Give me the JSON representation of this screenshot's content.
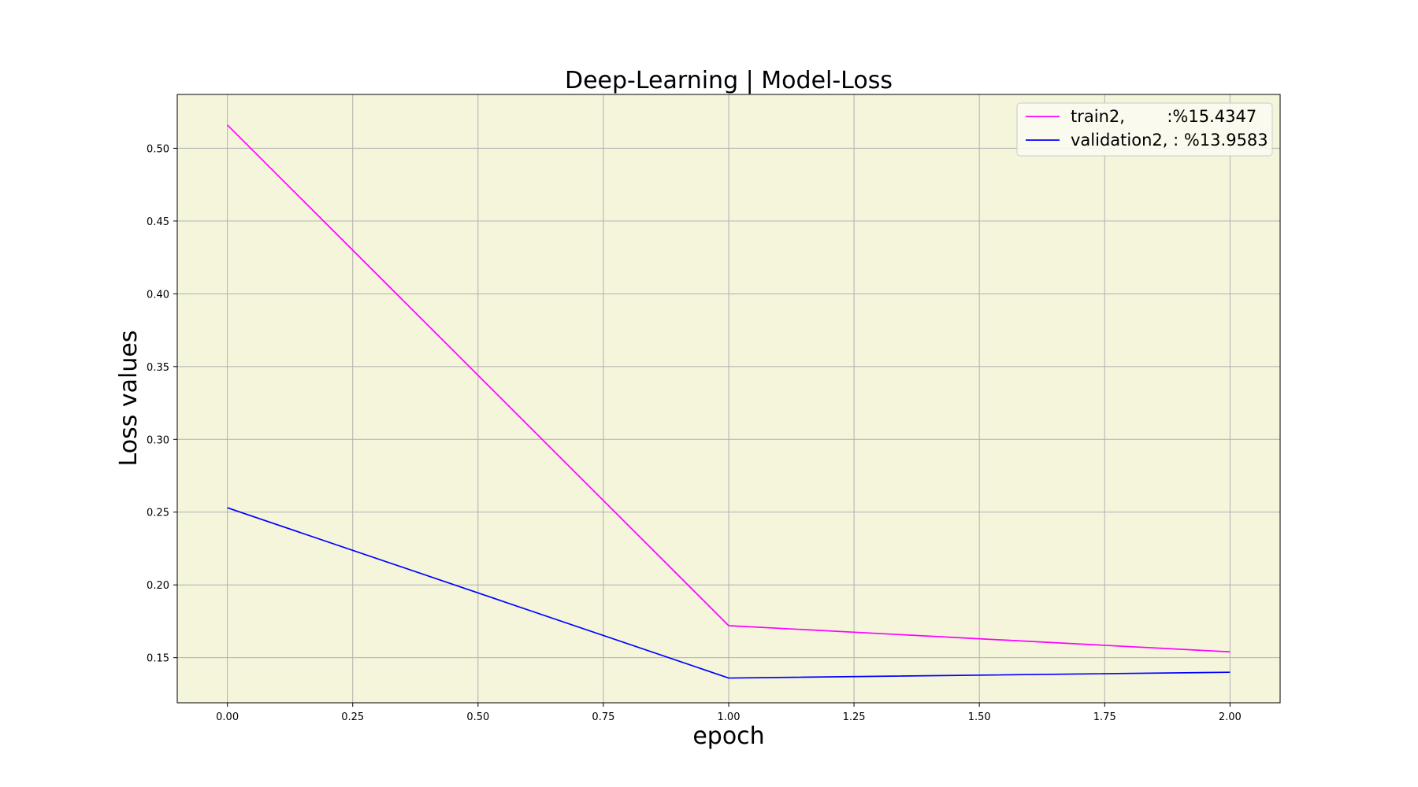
{
  "chart_data": {
    "type": "line",
    "title": "Deep-Learning | Model-Loss",
    "xlabel": "epoch",
    "ylabel": "Loss values",
    "xlim": [
      -0.1,
      2.1
    ],
    "ylim": [
      0.119,
      0.537
    ],
    "xticks": [
      0.0,
      0.25,
      0.5,
      0.75,
      1.0,
      1.25,
      1.5,
      1.75,
      2.0
    ],
    "xtick_labels": [
      "0.00",
      "0.25",
      "0.50",
      "0.75",
      "1.00",
      "1.25",
      "1.50",
      "1.75",
      "2.00"
    ],
    "yticks": [
      0.15,
      0.2,
      0.25,
      0.3,
      0.35,
      0.4,
      0.45,
      0.5
    ],
    "ytick_labels": [
      "0.15",
      "0.20",
      "0.25",
      "0.30",
      "0.35",
      "0.40",
      "0.45",
      "0.50"
    ],
    "grid": true,
    "background_color": "#f5f5dc",
    "legend_position": "top-right",
    "x": [
      0,
      1,
      2
    ],
    "series": [
      {
        "name": "train2,        :%15.4347",
        "values": [
          0.516,
          0.172,
          0.154
        ],
        "color": "#ff00ff"
      },
      {
        "name": "validation2, : %13.9583",
        "values": [
          0.253,
          0.136,
          0.14
        ],
        "color": "#0000ff"
      }
    ]
  }
}
